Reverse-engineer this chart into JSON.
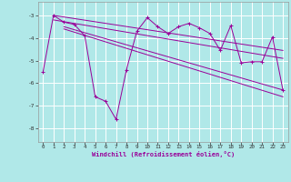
{
  "title": "",
  "xlabel": "Windchill (Refroidissement éolien,°C)",
  "background_color": "#b0e8e8",
  "grid_color": "#ffffff",
  "line_color": "#990099",
  "xlim": [
    -0.5,
    23.5
  ],
  "ylim": [
    -8.6,
    -2.4
  ],
  "yticks": [
    -8,
    -7,
    -6,
    -5,
    -4,
    -3
  ],
  "xticks": [
    0,
    1,
    2,
    3,
    4,
    5,
    6,
    7,
    8,
    9,
    10,
    11,
    12,
    13,
    14,
    15,
    16,
    17,
    18,
    19,
    20,
    21,
    22,
    23
  ],
  "line1_x": [
    0,
    1,
    2,
    3,
    4,
    5,
    6,
    7,
    8,
    9,
    10,
    11,
    12,
    13,
    14,
    15,
    16,
    17,
    18,
    19,
    20,
    21,
    22,
    23
  ],
  "line1_y": [
    -5.5,
    -3.0,
    -3.3,
    -3.4,
    -3.9,
    -6.6,
    -6.8,
    -7.6,
    -5.4,
    -3.7,
    -3.1,
    -3.5,
    -3.8,
    -3.5,
    -3.35,
    -3.55,
    -3.8,
    -4.55,
    -3.45,
    -5.1,
    -5.05,
    -5.05,
    -3.95,
    -6.3
  ],
  "trend1_x": [
    1,
    23
  ],
  "trend1_y": [
    -3.0,
    -4.55
  ],
  "trend2_x": [
    1,
    23
  ],
  "trend2_y": [
    -3.2,
    -4.9
  ],
  "trend3_x": [
    2,
    23
  ],
  "trend3_y": [
    -3.5,
    -6.3
  ],
  "trend4_x": [
    2,
    23
  ],
  "trend4_y": [
    -3.6,
    -6.6
  ]
}
